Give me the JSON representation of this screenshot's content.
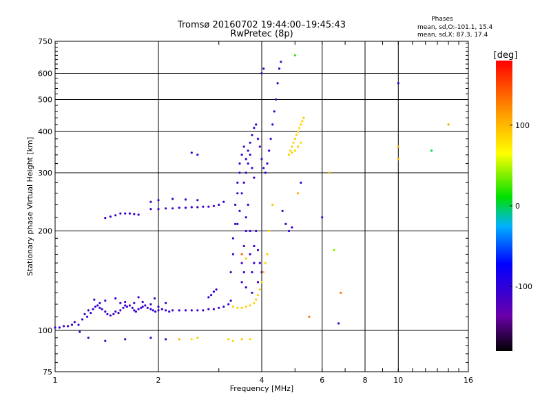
{
  "chart_data": {
    "type": "scatter",
    "title": "Tromsø 20160702 19:44:00–19:45:43",
    "subtitle": "RwPretec (8p)",
    "xlabel": "Frequency [MHz]",
    "ylabel": "Stationary phase Virtual Height [km]",
    "x_scale": "log",
    "y_scale": "log",
    "xlim": [
      1,
      16
    ],
    "ylim": [
      75,
      750
    ],
    "x_ticks": [
      1,
      2,
      4,
      6,
      8,
      10,
      16
    ],
    "x_tick_labels": [
      "1",
      "2",
      "4",
      "6",
      "8",
      "10",
      "16"
    ],
    "y_ticks": [
      75,
      100,
      200,
      300,
      400,
      500,
      600,
      750
    ],
    "y_tick_labels": [
      "75",
      "100",
      "200",
      "300",
      "400",
      "500",
      "600",
      "750"
    ],
    "grid": true,
    "colorbar": {
      "label": "[deg]",
      "min": -180,
      "max": 180,
      "ticks": [
        100,
        0,
        -100
      ],
      "tick_labels": [
        "100",
        "0",
        "-100"
      ]
    },
    "annotation": {
      "title": "Phases",
      "line1": "mean, sd,O:-101.1, 15.4",
      "line2": "mean, sd,X:  87.3, 17.4"
    },
    "series_points": [
      [
        1.0,
        102,
        -110
      ],
      [
        1.03,
        102,
        -110
      ],
      [
        1.06,
        103,
        -105
      ],
      [
        1.09,
        103,
        -110
      ],
      [
        1.12,
        104,
        -105
      ],
      [
        1.14,
        106,
        -110
      ],
      [
        1.17,
        104,
        -105
      ],
      [
        1.18,
        99,
        -110
      ],
      [
        1.2,
        108,
        -105
      ],
      [
        1.22,
        112,
        -110
      ],
      [
        1.24,
        110,
        -105
      ],
      [
        1.27,
        113,
        -110
      ],
      [
        1.29,
        116,
        -105
      ],
      [
        1.31,
        118,
        -110
      ],
      [
        1.33,
        119,
        -105
      ],
      [
        1.35,
        117,
        -110
      ],
      [
        1.37,
        116,
        -105
      ],
      [
        1.4,
        114,
        -110
      ],
      [
        1.42,
        112,
        -105
      ],
      [
        1.45,
        111,
        -110
      ],
      [
        1.48,
        112,
        -105
      ],
      [
        1.5,
        114,
        -110
      ],
      [
        1.53,
        113,
        -105
      ],
      [
        1.55,
        115,
        -110
      ],
      [
        1.58,
        117,
        -105
      ],
      [
        1.6,
        119,
        -110
      ],
      [
        1.62,
        118,
        -105
      ],
      [
        1.65,
        119,
        -110
      ],
      [
        1.68,
        117,
        -105
      ],
      [
        1.7,
        115,
        -110
      ],
      [
        1.72,
        114,
        -105
      ],
      [
        1.75,
        116,
        -110
      ],
      [
        1.78,
        117,
        -105
      ],
      [
        1.8,
        118,
        -110
      ],
      [
        1.83,
        119,
        -105
      ],
      [
        1.86,
        117,
        -110
      ],
      [
        1.9,
        116,
        -105
      ],
      [
        1.93,
        115,
        -110
      ],
      [
        1.96,
        114,
        -105
      ],
      [
        2.0,
        115,
        -110
      ],
      [
        2.05,
        116,
        -105
      ],
      [
        2.1,
        115,
        -110
      ],
      [
        2.15,
        114,
        -105
      ],
      [
        2.2,
        115,
        -110
      ],
      [
        2.3,
        115,
        -105
      ],
      [
        2.4,
        115,
        -110
      ],
      [
        2.5,
        115,
        -105
      ],
      [
        2.6,
        115,
        -110
      ],
      [
        2.7,
        115,
        -105
      ],
      [
        2.8,
        116,
        -110
      ],
      [
        2.9,
        116,
        -105
      ],
      [
        3.0,
        117,
        -110
      ],
      [
        3.1,
        118,
        -105
      ],
      [
        3.2,
        120,
        -110
      ],
      [
        3.25,
        123,
        -105
      ],
      [
        1.3,
        124,
        -105
      ],
      [
        1.4,
        123,
        -110
      ],
      [
        1.5,
        125,
        -105
      ],
      [
        1.6,
        122,
        -110
      ],
      [
        1.7,
        121,
        -105
      ],
      [
        1.8,
        122,
        -110
      ],
      [
        1.9,
        120,
        -105
      ],
      [
        2.0,
        118,
        -110
      ],
      [
        2.1,
        121,
        -105
      ],
      [
        1.95,
        125,
        -110
      ],
      [
        1.75,
        126,
        -105
      ],
      [
        1.55,
        121,
        -110
      ],
      [
        1.35,
        121,
        -105
      ],
      [
        1.25,
        115,
        -110
      ],
      [
        2.8,
        126,
        -105
      ],
      [
        2.85,
        128,
        -110
      ],
      [
        2.9,
        131,
        -105
      ],
      [
        2.95,
        133,
        -110
      ],
      [
        1.4,
        219,
        -105
      ],
      [
        1.45,
        221,
        -110
      ],
      [
        1.5,
        223,
        -105
      ],
      [
        1.55,
        226,
        -110
      ],
      [
        1.6,
        226,
        -105
      ],
      [
        1.65,
        226,
        -110
      ],
      [
        1.7,
        225,
        -105
      ],
      [
        1.75,
        224,
        -110
      ],
      [
        1.9,
        233,
        -105
      ],
      [
        2.0,
        233,
        -110
      ],
      [
        2.1,
        234,
        -105
      ],
      [
        2.2,
        234,
        -110
      ],
      [
        2.3,
        235,
        -105
      ],
      [
        2.4,
        235,
        -110
      ],
      [
        2.5,
        236,
        -105
      ],
      [
        2.6,
        236,
        -110
      ],
      [
        2.7,
        237,
        -105
      ],
      [
        2.8,
        237,
        -110
      ],
      [
        2.9,
        238,
        -105
      ],
      [
        3.0,
        240,
        -110
      ],
      [
        3.1,
        245,
        -105
      ],
      [
        1.9,
        245,
        -110
      ],
      [
        2.0,
        248,
        -105
      ],
      [
        2.2,
        250,
        -110
      ],
      [
        2.4,
        249,
        -105
      ],
      [
        2.6,
        248,
        -110
      ],
      [
        3.25,
        150,
        -110
      ],
      [
        3.3,
        170,
        -105
      ],
      [
        3.3,
        190,
        -110
      ],
      [
        3.35,
        210,
        -105
      ],
      [
        3.35,
        240,
        -110
      ],
      [
        3.4,
        260,
        -105
      ],
      [
        3.4,
        280,
        -110
      ],
      [
        3.45,
        300,
        -105
      ],
      [
        3.45,
        320,
        -110
      ],
      [
        3.5,
        340,
        -105
      ],
      [
        3.55,
        360,
        -110
      ],
      [
        3.6,
        330,
        -105
      ],
      [
        3.65,
        350,
        -110
      ],
      [
        3.7,
        370,
        -105
      ],
      [
        3.75,
        390,
        -110
      ],
      [
        3.8,
        410,
        -105
      ],
      [
        3.85,
        420,
        -110
      ],
      [
        3.9,
        380,
        -105
      ],
      [
        3.95,
        360,
        -110
      ],
      [
        4.0,
        330,
        -105
      ],
      [
        4.05,
        310,
        -110
      ],
      [
        4.1,
        300,
        -105
      ],
      [
        4.15,
        320,
        -110
      ],
      [
        4.2,
        350,
        -105
      ],
      [
        4.25,
        380,
        -110
      ],
      [
        4.3,
        420,
        -105
      ],
      [
        4.35,
        460,
        -110
      ],
      [
        4.4,
        500,
        -105
      ],
      [
        4.45,
        560,
        -110
      ],
      [
        4.5,
        620,
        -105
      ],
      [
        4.55,
        650,
        -110
      ],
      [
        4.0,
        600,
        -105
      ],
      [
        4.05,
        620,
        -110
      ],
      [
        3.5,
        140,
        -110
      ],
      [
        3.5,
        160,
        -105
      ],
      [
        3.55,
        180,
        -110
      ],
      [
        3.6,
        200,
        -105
      ],
      [
        3.6,
        220,
        -110
      ],
      [
        3.65,
        240,
        -105
      ],
      [
        3.7,
        200,
        -110
      ],
      [
        3.7,
        170,
        -105
      ],
      [
        3.75,
        150,
        -110
      ],
      [
        3.8,
        160,
        -105
      ],
      [
        3.8,
        180,
        -110
      ],
      [
        3.85,
        200,
        -105
      ],
      [
        3.9,
        175,
        -110
      ],
      [
        3.95,
        160,
        -105
      ],
      [
        4.0,
        150,
        -110
      ],
      [
        3.9,
        140,
        -105
      ],
      [
        3.75,
        130,
        -110
      ],
      [
        3.6,
        135,
        -105
      ],
      [
        3.55,
        150,
        -110
      ],
      [
        3.4,
        210,
        -105
      ],
      [
        3.45,
        230,
        -110
      ],
      [
        3.5,
        260,
        -105
      ],
      [
        3.55,
        280,
        -110
      ],
      [
        3.6,
        300,
        -105
      ],
      [
        3.65,
        320,
        -110
      ],
      [
        3.7,
        340,
        -105
      ],
      [
        3.75,
        310,
        -110
      ],
      [
        3.8,
        290,
        -105
      ],
      [
        3.3,
        118,
        90
      ],
      [
        3.4,
        117,
        85
      ],
      [
        3.5,
        117,
        90
      ],
      [
        3.6,
        118,
        85
      ],
      [
        3.7,
        119,
        90
      ],
      [
        3.8,
        121,
        85
      ],
      [
        3.85,
        124,
        90
      ],
      [
        3.9,
        128,
        85
      ],
      [
        3.95,
        133,
        90
      ],
      [
        4.0,
        140,
        85
      ],
      [
        4.05,
        150,
        90
      ],
      [
        4.1,
        160,
        85
      ],
      [
        4.15,
        170,
        90
      ],
      [
        4.2,
        200,
        85
      ],
      [
        4.3,
        240,
        90
      ],
      [
        4.8,
        340,
        90
      ],
      [
        4.85,
        350,
        85
      ],
      [
        4.9,
        360,
        90
      ],
      [
        4.95,
        370,
        85
      ],
      [
        5.0,
        380,
        90
      ],
      [
        5.05,
        390,
        85
      ],
      [
        5.1,
        400,
        90
      ],
      [
        5.15,
        410,
        85
      ],
      [
        5.2,
        420,
        90
      ],
      [
        5.25,
        430,
        85
      ],
      [
        5.3,
        440,
        90
      ],
      [
        5.2,
        370,
        85
      ],
      [
        5.1,
        360,
        90
      ],
      [
        5.0,
        350,
        85
      ],
      [
        4.9,
        345,
        90
      ],
      [
        1.25,
        95,
        -110
      ],
      [
        1.4,
        93,
        -105
      ],
      [
        1.6,
        94,
        -110
      ],
      [
        1.9,
        95,
        -105
      ],
      [
        2.1,
        94,
        -110
      ],
      [
        2.3,
        94,
        100
      ],
      [
        2.5,
        94,
        80
      ],
      [
        2.6,
        95,
        90
      ],
      [
        3.2,
        94,
        90
      ],
      [
        3.3,
        93,
        85
      ],
      [
        3.5,
        94,
        90
      ],
      [
        3.7,
        94,
        85
      ],
      [
        10.0,
        560,
        -110
      ],
      [
        10.0,
        360,
        100
      ],
      [
        10.0,
        330,
        95
      ],
      [
        12.5,
        350,
        0
      ],
      [
        14.0,
        420,
        110
      ],
      [
        6.3,
        300,
        100
      ],
      [
        6.0,
        220,
        -110
      ],
      [
        6.5,
        175,
        40
      ],
      [
        6.8,
        130,
        130
      ],
      [
        6.7,
        105,
        -110
      ],
      [
        5.5,
        110,
        130
      ],
      [
        5.0,
        680,
        20
      ],
      [
        4.6,
        230,
        -115
      ],
      [
        4.7,
        210,
        -110
      ],
      [
        4.8,
        200,
        -105
      ],
      [
        4.9,
        205,
        -110
      ],
      [
        5.2,
        280,
        -105
      ],
      [
        5.1,
        260,
        110
      ],
      [
        2.6,
        340,
        -110
      ],
      [
        2.5,
        345,
        -105
      ],
      [
        3.5,
        170,
        140
      ],
      [
        3.6,
        165,
        90
      ]
    ]
  }
}
